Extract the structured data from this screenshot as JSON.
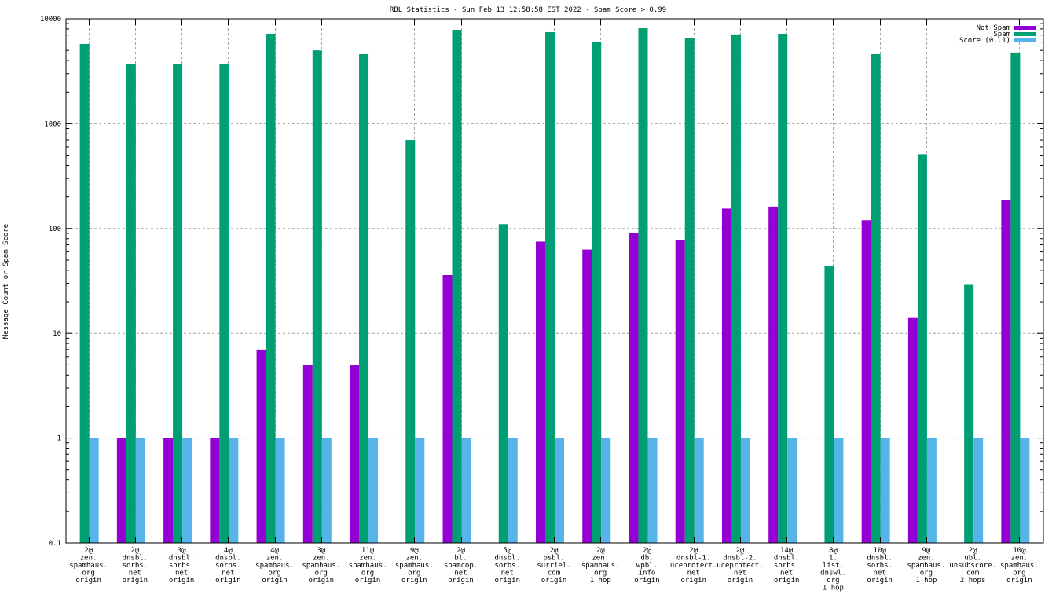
{
  "chart_data": {
    "type": "bar",
    "title": "RBL Statistics - Sun Feb 13 12:58:58 EST 2022 - Spam Score > 0.99",
    "xlabel": "",
    "ylabel": "Message Count or Spam Score",
    "yscale": "log",
    "ylim": [
      0.1,
      10000
    ],
    "yticks": [
      {
        "value": 0.1,
        "label": "0.1"
      },
      {
        "value": 1,
        "label": "1"
      },
      {
        "value": 10,
        "label": "10"
      },
      {
        "value": 100,
        "label": "100"
      },
      {
        "value": 1000,
        "label": "1000"
      },
      {
        "value": 10000,
        "label": "10000"
      }
    ],
    "grid": true,
    "legend_position": "top-right",
    "categories": [
      [
        "2@",
        "zen.",
        "spamhaus.",
        "org",
        "origin"
      ],
      [
        "2@",
        "dnsbl.",
        "sorbs.",
        "net",
        "origin"
      ],
      [
        "3@",
        "dnsbl.",
        "sorbs.",
        "net",
        "origin"
      ],
      [
        "4@",
        "dnsbl.",
        "sorbs.",
        "net",
        "origin"
      ],
      [
        "4@",
        "zen.",
        "spamhaus.",
        "org",
        "origin"
      ],
      [
        "3@",
        "zen.",
        "spamhaus.",
        "org",
        "origin"
      ],
      [
        "11@",
        "zen.",
        "spamhaus.",
        "org",
        "origin"
      ],
      [
        "9@",
        "zen.",
        "spamhaus.",
        "org",
        "origin"
      ],
      [
        "2@",
        "bl.",
        "spamcop.",
        "net",
        "origin"
      ],
      [
        "5@",
        "dnsbl.",
        "sorbs.",
        "net",
        "origin"
      ],
      [
        "2@",
        "psbl.",
        "surriel.",
        "com",
        "origin"
      ],
      [
        "2@",
        "zen.",
        "spamhaus.",
        "org",
        "1 hop"
      ],
      [
        "2@",
        "db.",
        "wpbl.",
        "info",
        "origin"
      ],
      [
        "2@",
        "dnsbl-1.",
        "uceprotect.",
        "net",
        "origin"
      ],
      [
        "2@",
        "dnsbl-2.",
        "uceprotect.",
        "net",
        "origin"
      ],
      [
        "14@",
        "dnsbl.",
        "sorbs.",
        "net",
        "origin"
      ],
      [
        "8@",
        "1.",
        "list.",
        "dnswl.",
        "org",
        "1 hop"
      ],
      [
        "10@",
        "dnsbl.",
        "sorbs.",
        "net",
        "origin"
      ],
      [
        "9@",
        "zen.",
        "spamhaus.",
        "org",
        "1 hop"
      ],
      [
        "2@",
        "ubl.",
        "unsubscore.",
        "com",
        "2 hops"
      ],
      [
        "10@",
        "zen.",
        "spamhaus.",
        "org",
        "origin"
      ]
    ],
    "series": [
      {
        "name": "Not Spam",
        "color": "#9400d3",
        "values": [
          null,
          1,
          1,
          1,
          7,
          5,
          5,
          null,
          36,
          null,
          75,
          63,
          90,
          77,
          155,
          162,
          null,
          120,
          14,
          null,
          187
        ]
      },
      {
        "name": "Spam",
        "color": "#009e73",
        "values": [
          5760,
          3680,
          3680,
          3680,
          7200,
          5000,
          4600,
          700,
          7850,
          110,
          7460,
          6060,
          8130,
          6500,
          7100,
          7200,
          44,
          4600,
          510,
          29,
          4770
        ]
      },
      {
        "name": "Score (0..1)",
        "color": "#56b4e9",
        "values": [
          1,
          1,
          1,
          1,
          1,
          1,
          1,
          1,
          1,
          1,
          1,
          1,
          1,
          1,
          1,
          1,
          1,
          1,
          1,
          1,
          1
        ]
      }
    ]
  }
}
